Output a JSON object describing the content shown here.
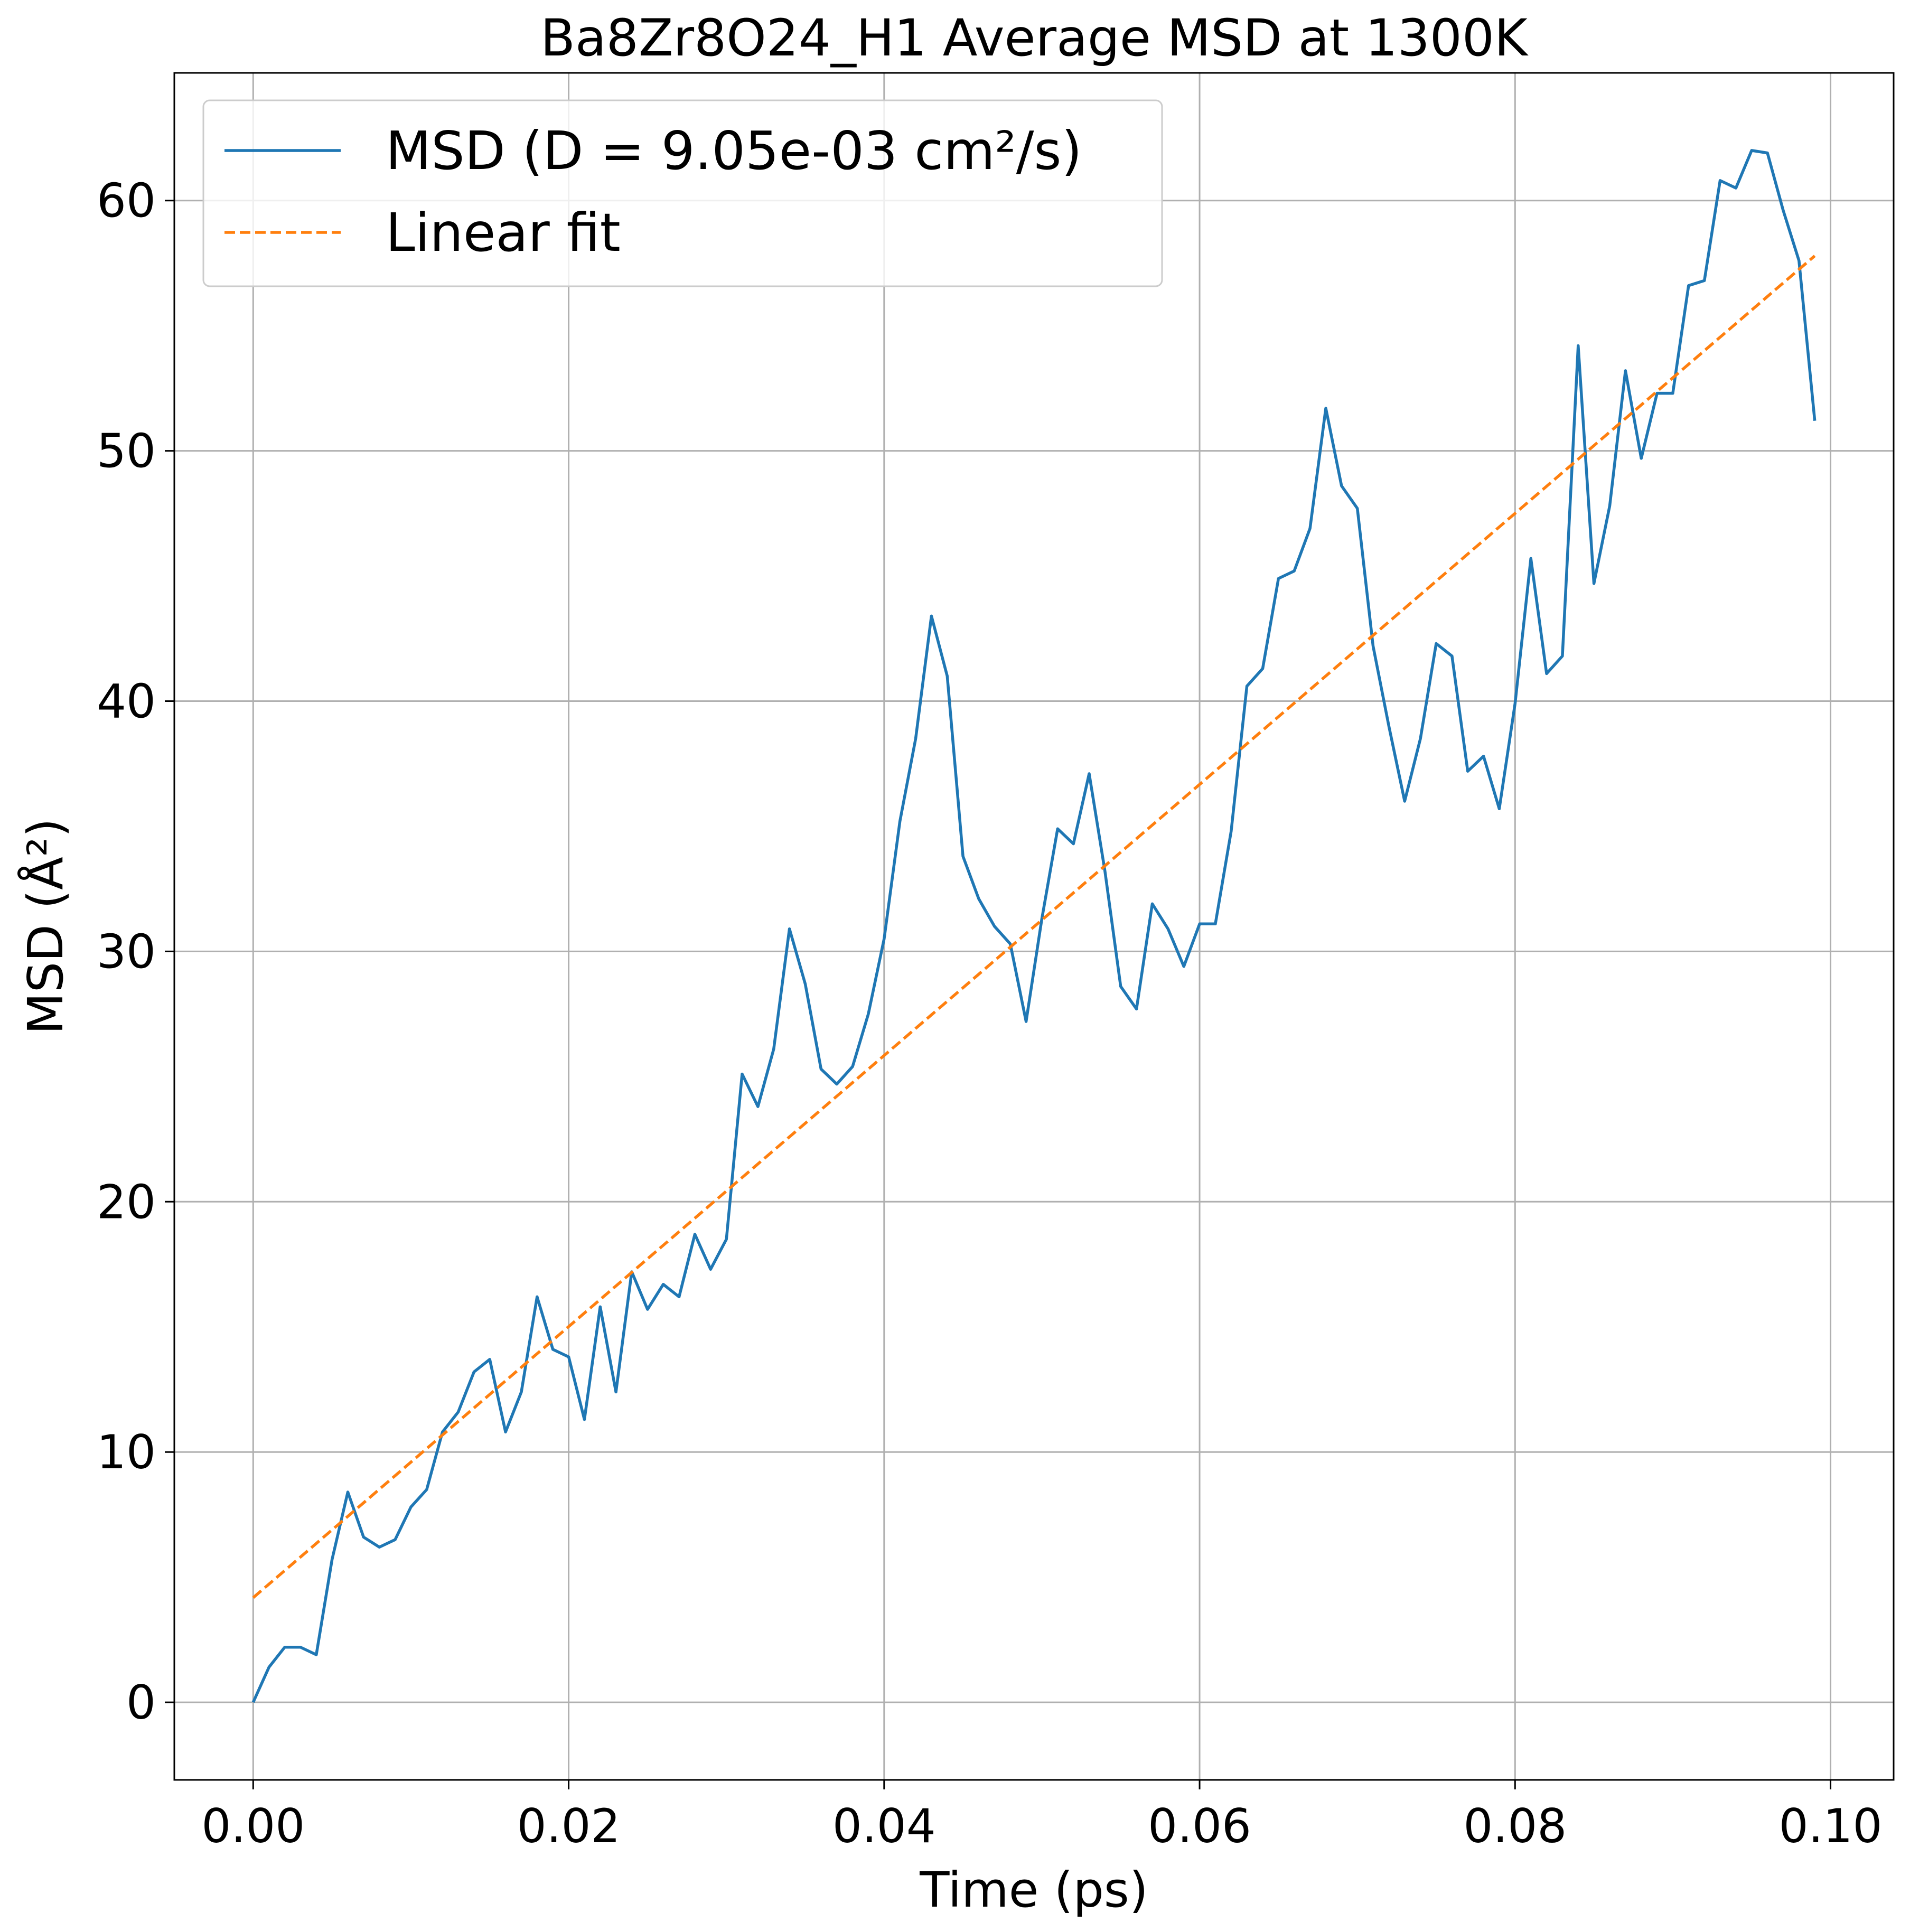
{
  "chart_data": {
    "type": "line",
    "title": "Ba8Zr8O24_H1 Average MSD at 1300K",
    "xlabel": "Time (ps)",
    "ylabel": "MSD (Å²)",
    "xlim": [
      -0.005,
      0.104
    ],
    "ylim": [
      -3.1,
      65.1
    ],
    "xticks": [
      0.0,
      0.02,
      0.04,
      0.06,
      0.08,
      0.1
    ],
    "xtick_labels": [
      "0.00",
      "0.02",
      "0.04",
      "0.06",
      "0.08",
      "0.10"
    ],
    "yticks": [
      0,
      10,
      20,
      30,
      40,
      50,
      60
    ],
    "ytick_labels": [
      "0",
      "10",
      "20",
      "30",
      "40",
      "50",
      "60"
    ],
    "grid": true,
    "legend_position": "top-left",
    "series": [
      {
        "name": "MSD (D = 9.05e-03 cm²/s)",
        "color": "#1f77b4",
        "style": "solid",
        "x": [
          0.0,
          0.001,
          0.002,
          0.003,
          0.004,
          0.005,
          0.006,
          0.007,
          0.008,
          0.009,
          0.01,
          0.011,
          0.012,
          0.013,
          0.014,
          0.015,
          0.016,
          0.017,
          0.018,
          0.019,
          0.02,
          0.021,
          0.022,
          0.023,
          0.024,
          0.025,
          0.026,
          0.027,
          0.028,
          0.029,
          0.03,
          0.031,
          0.032,
          0.033,
          0.034,
          0.035,
          0.036,
          0.037,
          0.038,
          0.039,
          0.04,
          0.041,
          0.042,
          0.043,
          0.044,
          0.045,
          0.046,
          0.047,
          0.048,
          0.049,
          0.05,
          0.051,
          0.052,
          0.053,
          0.054,
          0.055,
          0.056,
          0.057,
          0.058,
          0.059,
          0.06,
          0.061,
          0.062,
          0.063,
          0.064,
          0.065,
          0.066,
          0.067,
          0.068,
          0.069,
          0.07,
          0.071,
          0.072,
          0.073,
          0.074,
          0.075,
          0.076,
          0.077,
          0.078,
          0.079,
          0.08,
          0.081,
          0.082,
          0.083,
          0.084,
          0.085,
          0.086,
          0.087,
          0.088,
          0.089,
          0.09,
          0.091,
          0.092,
          0.093,
          0.094,
          0.095,
          0.096,
          0.097,
          0.098,
          0.099
        ],
        "y": [
          0.0,
          1.4,
          2.2,
          2.2,
          1.9,
          5.7,
          8.4,
          6.6,
          6.2,
          6.5,
          7.8,
          8.5,
          10.8,
          11.6,
          13.2,
          13.7,
          10.8,
          12.4,
          16.2,
          14.1,
          13.8,
          11.3,
          15.8,
          12.4,
          17.2,
          15.7,
          16.7,
          16.2,
          18.7,
          17.3,
          18.5,
          25.1,
          23.8,
          26.1,
          30.9,
          28.7,
          25.3,
          24.7,
          25.4,
          27.5,
          30.5,
          35.2,
          38.5,
          43.4,
          41.0,
          33.8,
          32.1,
          31.0,
          30.3,
          27.2,
          31.3,
          34.9,
          34.3,
          37.1,
          33.2,
          28.6,
          27.7,
          31.9,
          30.9,
          29.4,
          31.1,
          31.1,
          34.8,
          40.6,
          41.3,
          44.9,
          45.2,
          46.9,
          51.7,
          48.6,
          47.7,
          42.2,
          39.0,
          36.0,
          38.5,
          42.3,
          41.8,
          37.2,
          37.8,
          35.7,
          39.9,
          45.7,
          41.1,
          41.8,
          54.2,
          44.7,
          47.8,
          53.2,
          49.7,
          52.3,
          52.3,
          56.6,
          56.8,
          60.8,
          60.5,
          62.0,
          61.9,
          59.6,
          57.6,
          51.2
        ]
      },
      {
        "name": "Linear fit",
        "color": "#ff7f0e",
        "style": "dashed",
        "x": [
          0.0,
          0.099
        ],
        "y": [
          4.18,
          57.79
        ]
      }
    ]
  }
}
